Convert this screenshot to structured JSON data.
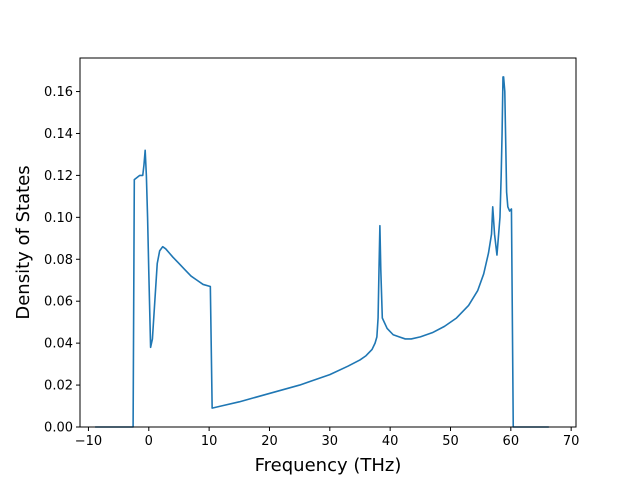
{
  "chart_data": {
    "type": "line",
    "title": "",
    "xlabel": "Frequency (THz)",
    "ylabel": "Density of States",
    "xlim": [
      -11.4,
      70.8
    ],
    "ylim": [
      0,
      0.176
    ],
    "xticks": [
      -10,
      0,
      10,
      20,
      30,
      40,
      50,
      60,
      70
    ],
    "yticks": [
      0.0,
      0.02,
      0.04,
      0.06,
      0.08,
      0.1,
      0.12,
      0.14,
      0.16
    ],
    "grid": false,
    "legend": "none",
    "series": [
      {
        "color": "#1f77b4",
        "x": [
          -8.9,
          -2.6,
          -2.4,
          -1.5,
          -1.0,
          -0.8,
          -0.6,
          -0.4,
          -0.2,
          0.0,
          0.3,
          0.6,
          1.0,
          1.4,
          1.8,
          2.3,
          2.8,
          3.4,
          4.0,
          5.0,
          6.0,
          7.0,
          8.0,
          9.0,
          10.2,
          10.5,
          12,
          15,
          20,
          25,
          30,
          33,
          35,
          36,
          37,
          37.5,
          37.8,
          38.0,
          38.15,
          38.3,
          38.45,
          38.7,
          39.5,
          40.5,
          41.5,
          42.5,
          43.5,
          45,
          47,
          49,
          51,
          53,
          54.5,
          55.5,
          56.3,
          56.8,
          57.0,
          57.3,
          57.7,
          58.2,
          58.4,
          58.55,
          58.7,
          58.8,
          59.0,
          59.3,
          59.5,
          59.8,
          60.1,
          60.4,
          66.3
        ],
        "y": [
          0,
          0,
          0.118,
          0.12,
          0.12,
          0.125,
          0.132,
          0.12,
          0.1,
          0.074,
          0.038,
          0.042,
          0.06,
          0.078,
          0.084,
          0.086,
          0.085,
          0.083,
          0.081,
          0.078,
          0.075,
          0.072,
          0.07,
          0.068,
          0.067,
          0.009,
          0.01,
          0.012,
          0.016,
          0.02,
          0.025,
          0.029,
          0.032,
          0.034,
          0.037,
          0.04,
          0.043,
          0.052,
          0.075,
          0.096,
          0.075,
          0.052,
          0.047,
          0.044,
          0.043,
          0.042,
          0.042,
          0.043,
          0.045,
          0.048,
          0.052,
          0.058,
          0.065,
          0.073,
          0.083,
          0.092,
          0.105,
          0.092,
          0.082,
          0.1,
          0.12,
          0.14,
          0.167,
          0.167,
          0.16,
          0.112,
          0.105,
          0.103,
          0.104,
          0,
          0
        ]
      }
    ]
  }
}
